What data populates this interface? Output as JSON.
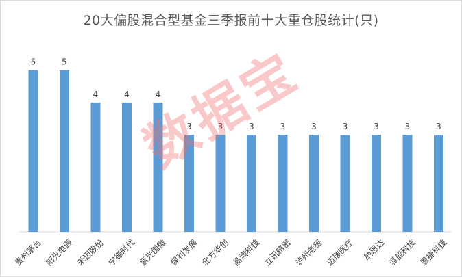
{
  "chart_data": {
    "type": "bar",
    "title": "20大偏股混合型基金三季报前十大重仓股统计(只)",
    "categories": [
      "贵州茅台",
      "阳光电源",
      "禾迈股份",
      "宁德时代",
      "紫光国微",
      "保利发展",
      "北方华创",
      "晶澳科技",
      "立讯精密",
      "泸州老窖",
      "迈瑞医疗",
      "纳思达",
      "派能科技",
      "恩捷科技"
    ],
    "values": [
      5,
      5,
      4,
      4,
      4,
      3,
      3,
      3,
      3,
      3,
      3,
      3,
      3,
      3
    ],
    "ylim": [
      0,
      5.5
    ],
    "grid": false,
    "legend": "none",
    "bar_color": "#5b9bd5"
  },
  "watermark": "数据宝"
}
